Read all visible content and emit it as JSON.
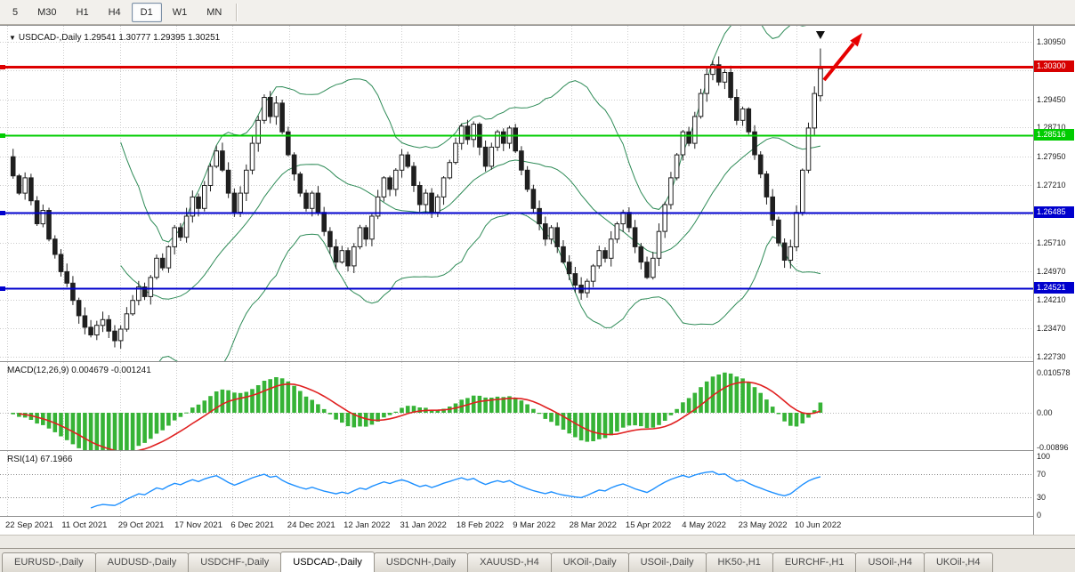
{
  "toolbar": {
    "timeframes": [
      {
        "label": "5",
        "active": false
      },
      {
        "label": "M30",
        "active": false
      },
      {
        "label": "H1",
        "active": false
      },
      {
        "label": "H4",
        "active": false
      },
      {
        "label": "D1",
        "active": true
      },
      {
        "label": "W1",
        "active": false
      },
      {
        "label": "MN",
        "active": false
      }
    ]
  },
  "chart": {
    "symbol_title": "USDCAD-,Daily",
    "ohlc_text": "1.29541 1.30777 1.29395 1.30251"
  },
  "macd_panel": {
    "title": "MACD(12,26,9)",
    "main_value": "0.004679",
    "signal_value": "-0.001241",
    "axis_labels": [
      "0.010578",
      "0.00",
      "-0.00896"
    ]
  },
  "rsi_panel": {
    "title": "RSI(14)",
    "value": "67.1966",
    "axis_labels": [
      "100",
      "70",
      "30",
      "0"
    ]
  },
  "tabs": [
    {
      "label": "EURUSD-,Daily",
      "active": false
    },
    {
      "label": "AUDUSD-,Daily",
      "active": false
    },
    {
      "label": "USDCHF-,Daily",
      "active": false
    },
    {
      "label": "USDCAD-,Daily",
      "active": true
    },
    {
      "label": "USDCNH-,Daily",
      "active": false
    },
    {
      "label": "XAUUSD-,H4",
      "active": false
    },
    {
      "label": "UKOil-,Daily",
      "active": false
    },
    {
      "label": "USOil-,Daily",
      "active": false
    },
    {
      "label": "HK50-,H1",
      "active": false
    },
    {
      "label": "EURCHF-,H1",
      "active": false
    },
    {
      "label": "USOil-,H4",
      "active": false
    },
    {
      "label": "UKOil-,H4",
      "active": false
    }
  ],
  "chart_data": {
    "type": "candlestick",
    "symbol": "USDCAD",
    "timeframe": "Daily",
    "title": "USDCAD-,Daily",
    "last_ohlc": {
      "open": 1.29541,
      "high": 1.30777,
      "low": 1.29395,
      "close": 1.30251
    },
    "ylim": [
      1.2259,
      1.3137
    ],
    "x_tick_labels": [
      "22 Sep 2021",
      "11 Oct 2021",
      "29 Oct 2021",
      "17 Nov 2021",
      "6 Dec 2021",
      "24 Dec 2021",
      "12 Jan 2022",
      "31 Jan 2022",
      "18 Feb 2022",
      "9 Mar 2022",
      "28 Mar 2022",
      "15 Apr 2022",
      "4 May 2022",
      "23 May 2022",
      "10 Jun 2022"
    ],
    "price_axis_ticks": [
      {
        "price": 1.3095,
        "label": "1.30950"
      },
      {
        "price": 1.2945,
        "label": "1.29450"
      },
      {
        "price": 1.2871,
        "label": "1.28710"
      },
      {
        "price": 1.2795,
        "label": "1.27950"
      },
      {
        "price": 1.2721,
        "label": "1.27210"
      },
      {
        "price": 1.2571,
        "label": "1.25710"
      },
      {
        "price": 1.2497,
        "label": "1.24970"
      },
      {
        "price": 1.2421,
        "label": "1.24210"
      },
      {
        "price": 1.2347,
        "label": "1.23470"
      },
      {
        "price": 1.2273,
        "label": "1.22730"
      }
    ],
    "hidden_grid_prices": [
      1.3021,
      1.2645
    ],
    "price_tags": [
      {
        "price": 1.303,
        "label": "1.30300",
        "color": "#d70000"
      },
      {
        "price": 1.28516,
        "label": "1.28516",
        "color": "#00cc00"
      },
      {
        "price": 1.26485,
        "label": "1.26485",
        "color": "#0000cd"
      },
      {
        "price": 1.24521,
        "label": "1.24521",
        "color": "#0000cd"
      }
    ],
    "hlines": [
      {
        "price": 1.303,
        "color": "#dd0000",
        "width": 3
      },
      {
        "price": 1.28516,
        "color": "#00cc00",
        "width": 2
      },
      {
        "price": 1.26485,
        "color": "#0000cd",
        "width": 2
      },
      {
        "price": 1.24521,
        "color": "#0000cd",
        "width": 2
      }
    ],
    "closes": [
      1.2795,
      1.2745,
      1.27,
      1.274,
      1.268,
      1.262,
      1.2655,
      1.258,
      1.254,
      1.2495,
      1.2465,
      1.242,
      1.238,
      1.235,
      1.233,
      1.2355,
      1.237,
      1.234,
      1.2315,
      1.2345,
      1.2385,
      1.242,
      1.2455,
      1.243,
      1.248,
      1.253,
      1.2505,
      1.256,
      1.261,
      1.2585,
      1.264,
      1.269,
      1.266,
      1.272,
      1.277,
      1.281,
      1.276,
      1.27,
      1.265,
      1.27,
      1.276,
      1.283,
      1.289,
      1.295,
      1.29,
      1.2935,
      1.286,
      1.28,
      1.275,
      1.27,
      1.266,
      1.27,
      1.265,
      1.26,
      1.256,
      1.252,
      1.255,
      1.251,
      1.256,
      1.261,
      1.258,
      1.264,
      1.269,
      1.274,
      1.271,
      1.276,
      1.28,
      1.277,
      1.272,
      1.267,
      1.27,
      1.265,
      1.269,
      1.274,
      1.278,
      1.283,
      1.2875,
      1.284,
      1.288,
      1.282,
      1.277,
      1.282,
      1.286,
      1.283,
      1.287,
      1.281,
      1.276,
      1.271,
      1.266,
      1.262,
      1.258,
      1.261,
      1.256,
      1.252,
      1.249,
      1.246,
      1.244,
      1.247,
      1.251,
      1.255,
      1.253,
      1.258,
      1.262,
      1.265,
      1.261,
      1.256,
      1.252,
      1.248,
      1.253,
      1.26,
      1.267,
      1.274,
      1.28,
      1.286,
      1.283,
      1.29,
      1.296,
      1.301,
      1.3035,
      1.299,
      1.3015,
      1.295,
      1.289,
      1.292,
      1.286,
      1.28,
      1.275,
      1.269,
      1.263,
      1.257,
      1.2525,
      1.256,
      1.265,
      1.276,
      1.287,
      1.296,
      1.30251
    ],
    "indicators": {
      "bollinger": {
        "period": 20,
        "deviation": 2,
        "color": "#2e8b57"
      },
      "macd": {
        "fast": 12,
        "slow": 26,
        "signal": 9,
        "current_main": 0.004679,
        "current_signal": -0.001241,
        "axis": {
          "max": 0.010578,
          "zero": 0,
          "min": -0.00896
        },
        "histogram_color": "#36b336",
        "signal_color": "#e02020"
      },
      "rsi": {
        "period": 14,
        "current": 67.1966,
        "levels": [
          70,
          30
        ],
        "color": "#1e90ff"
      }
    },
    "annotations": {
      "up_arrow_color": "#e60000",
      "last_candle_marker": "black-down-triangle"
    },
    "grid": "dotted",
    "legend_position": "top-left-overlay"
  }
}
